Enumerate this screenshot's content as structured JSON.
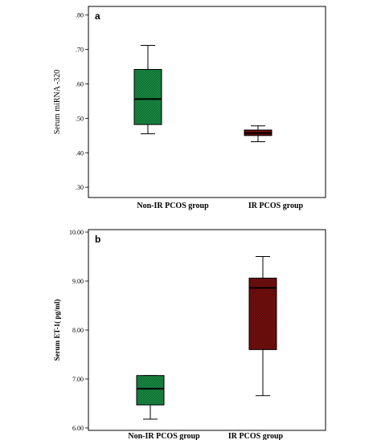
{
  "chart_data": [
    {
      "type": "box",
      "panel_label": "a",
      "ylabel": "Serum miRNA -320",
      "categories": [
        "Non-IR  PCOS group",
        "IR PCOS  group"
      ],
      "colors": [
        "#1a8a43",
        "#7a1010"
      ],
      "ylim": [
        0.27,
        0.825
      ],
      "yticks": [
        ".30",
        ".40",
        ".50",
        ".60",
        ".70",
        ".80"
      ],
      "series": [
        {
          "min": 0.455,
          "q1": 0.482,
          "median": 0.556,
          "q3": 0.642,
          "max": 0.712
        },
        {
          "min": 0.432,
          "q1": 0.45,
          "median": 0.457,
          "q3": 0.466,
          "max": 0.478
        }
      ]
    },
    {
      "type": "box",
      "panel_label": "b",
      "ylabel": "Serum ET-1( pg/ml)",
      "categories": [
        "Non-IR  PCOS group",
        "IR PCOS  group"
      ],
      "colors": [
        "#1a8a43",
        "#7a1010"
      ],
      "ylim": [
        5.95,
        10.05
      ],
      "yticks": [
        "6.00",
        "7.00",
        "8.00",
        "9.00",
        "10.00"
      ],
      "series": [
        {
          "min": 6.18,
          "q1": 6.47,
          "median": 6.8,
          "q3": 7.07,
          "max": 7.07
        },
        {
          "min": 6.66,
          "q1": 7.6,
          "median": 8.86,
          "q3": 9.06,
          "max": 9.5
        }
      ]
    }
  ]
}
